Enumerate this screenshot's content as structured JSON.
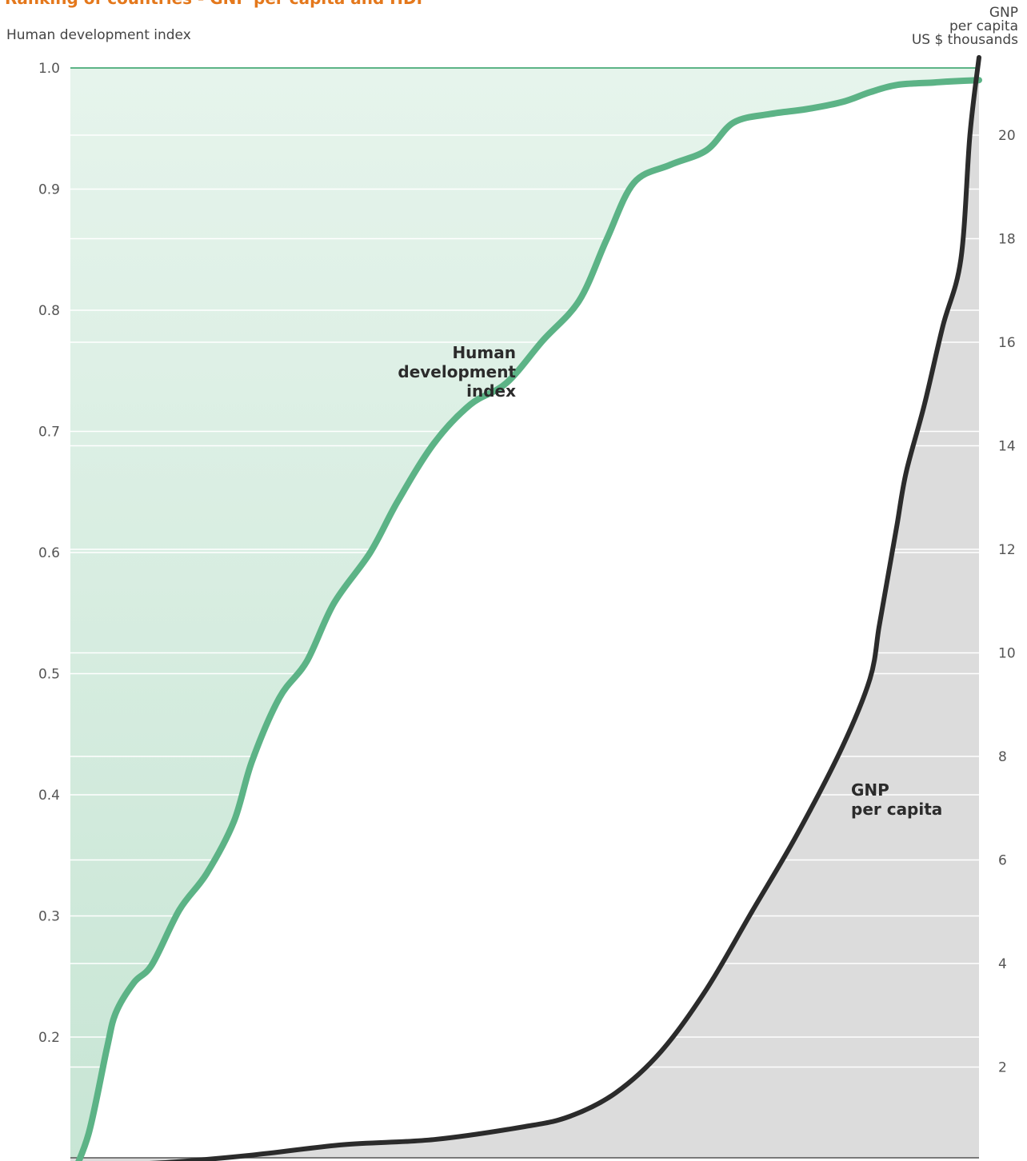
{
  "title": "Ranking of countries - GNP per capita and HDI",
  "left_axis_title": "Human development index",
  "right_axis_title": [
    "GNP",
    "per capita",
    "US $ thousands"
  ],
  "colors": {
    "hdi_line": "#5cb386",
    "hdi_fill_top": "#e6f4ec",
    "hdi_fill_bottom": "#c7e5d4",
    "gnp_line": "#2b2b2b",
    "gnp_fill": "#dcdcdc",
    "grid": "#ffffff"
  },
  "chart_data": {
    "type": "line",
    "x_description": "countries ranked (ascending)",
    "y_left": {
      "label": "Human development index",
      "range": [
        0.07,
        1.0
      ],
      "ticks": [
        "0.2",
        "0.3",
        "0.4",
        "0.5",
        "0.6",
        "0.7",
        "0.8",
        "0.9",
        "1.0"
      ]
    },
    "y_right": {
      "label": "GNP per capita US $ thousands",
      "range": [
        0,
        22.5
      ],
      "ticks": [
        "2",
        "4",
        "6",
        "8",
        "10",
        "12",
        "14",
        "16",
        "18",
        "20"
      ]
    },
    "grid": true,
    "series": [
      {
        "name": "Human development index",
        "axis": "left",
        "x": [
          0,
          2,
          4,
          5,
          7,
          9,
          12,
          15,
          18,
          20,
          23,
          26,
          29,
          33,
          36,
          40,
          44,
          48,
          52,
          56,
          59,
          62,
          66,
          70,
          73,
          77,
          81,
          85,
          88,
          91,
          95,
          97,
          100
        ],
        "y": [
          0.082,
          0.12,
          0.19,
          0.22,
          0.245,
          0.26,
          0.305,
          0.335,
          0.378,
          0.428,
          0.48,
          0.51,
          0.558,
          0.6,
          0.642,
          0.69,
          0.722,
          0.74,
          0.775,
          0.808,
          0.858,
          0.905,
          0.92,
          0.932,
          0.955,
          0.962,
          0.966,
          0.972,
          0.98,
          0.986,
          0.988,
          0.989,
          0.99
        ]
      },
      {
        "name": "GNP per capita",
        "axis": "right",
        "x": [
          0,
          10,
          20,
          30,
          40,
          50,
          55,
          60,
          65,
          70,
          75,
          80,
          85,
          88,
          89,
          90,
          91,
          92,
          94,
          96,
          98,
          99,
          100
        ],
        "y": [
          0.1,
          0.15,
          0.3,
          0.5,
          0.6,
          0.85,
          1.05,
          1.5,
          2.3,
          3.5,
          5.0,
          6.5,
          8.2,
          9.5,
          10.5,
          11.5,
          12.5,
          13.5,
          14.8,
          16.3,
          17.6,
          20.0,
          21.5
        ]
      }
    ],
    "annotations": [
      {
        "series": "Human development index",
        "lines": [
          "Human",
          "development",
          "index"
        ]
      },
      {
        "series": "GNP per capita",
        "lines": [
          "GNP",
          "per capita"
        ]
      }
    ]
  }
}
